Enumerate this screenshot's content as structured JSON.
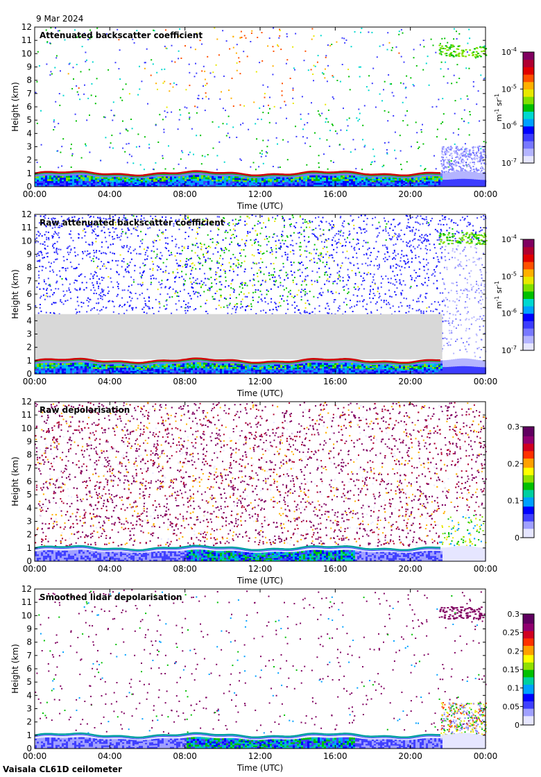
{
  "date_label": "9 Mar 2024",
  "instrument_label": "Vaisala CL61D ceilometer",
  "chart_data": [
    {
      "type": "heatmap",
      "title": "Attenuated backscatter coefficient",
      "xlabel": "Time (UTC)",
      "ylabel": "Height (km)",
      "x_ticks": [
        "00:00",
        "04:00",
        "08:00",
        "12:00",
        "16:00",
        "20:00",
        "00:00"
      ],
      "xlim_hours": [
        0,
        24
      ],
      "ylim": [
        0,
        12
      ],
      "y_ticks": [
        0,
        1,
        2,
        3,
        4,
        5,
        6,
        7,
        8,
        9,
        10,
        11,
        12
      ],
      "colorbar": {
        "scale": "log",
        "unit": "m-1 sr-1",
        "unit_base": "m",
        "unit_exp1": "-1",
        "unit_mid": "sr",
        "unit_exp2": "-1",
        "ticks": [
          {
            "base": "10",
            "exp": "-7"
          },
          {
            "base": "10",
            "exp": "-6"
          },
          {
            "base": "10",
            "exp": "-5"
          },
          {
            "base": "10",
            "exp": "-4"
          }
        ]
      },
      "cloud_base_km": 1.0,
      "high_cloud": {
        "start_hour": 21.5,
        "height_km": [
          9.8,
          10.7
        ]
      },
      "variant": "att"
    },
    {
      "type": "heatmap",
      "title": "Raw attenuated backscatter coefficient",
      "xlabel": "Time (UTC)",
      "ylabel": "Height (km)",
      "x_ticks": [
        "00:00",
        "04:00",
        "08:00",
        "12:00",
        "16:00",
        "20:00",
        "00:00"
      ],
      "xlim_hours": [
        0,
        24
      ],
      "ylim": [
        0,
        12
      ],
      "y_ticks": [
        0,
        1,
        2,
        3,
        4,
        5,
        6,
        7,
        8,
        9,
        10,
        11,
        12
      ],
      "colorbar": {
        "scale": "log",
        "unit": "m-1 sr-1",
        "unit_base": "m",
        "unit_exp1": "-1",
        "unit_mid": "sr",
        "unit_exp2": "-1",
        "ticks": [
          {
            "base": "10",
            "exp": "-7"
          },
          {
            "base": "10",
            "exp": "-6"
          },
          {
            "base": "10",
            "exp": "-5"
          },
          {
            "base": "10",
            "exp": "-4"
          }
        ]
      },
      "cloud_base_km": 1.0,
      "high_cloud": {
        "start_hour": 21.5,
        "height_km": [
          9.8,
          10.7
        ]
      },
      "variant": "raw"
    },
    {
      "type": "heatmap",
      "title": "Raw depolarisation",
      "xlabel": "Time (UTC)",
      "ylabel": "Height (km)",
      "x_ticks": [
        "00:00",
        "04:00",
        "08:00",
        "12:00",
        "16:00",
        "20:00",
        "00:00"
      ],
      "xlim_hours": [
        0,
        24
      ],
      "ylim": [
        0,
        12
      ],
      "y_ticks": [
        0,
        1,
        2,
        3,
        4,
        5,
        6,
        7,
        8,
        9,
        10,
        11,
        12
      ],
      "colorbar": {
        "scale": "linear",
        "range": [
          0,
          0.3
        ],
        "ticks": [
          "0",
          "0.1",
          "0.2",
          "0.3"
        ]
      },
      "cloud_base_km": 1.0,
      "variant": "rawdep"
    },
    {
      "type": "heatmap",
      "title": "Smoothed lidar depolarisation",
      "xlabel": "Time (UTC)",
      "ylabel": "Height (km)",
      "x_ticks": [
        "00:00",
        "04:00",
        "08:00",
        "12:00",
        "16:00",
        "20:00",
        "00:00"
      ],
      "xlim_hours": [
        0,
        24
      ],
      "ylim": [
        0,
        12
      ],
      "y_ticks": [
        0,
        1,
        2,
        3,
        4,
        5,
        6,
        7,
        8,
        9,
        10,
        11,
        12
      ],
      "colorbar": {
        "scale": "linear",
        "range": [
          0,
          0.3
        ],
        "ticks": [
          "0",
          "0.05",
          "0.1",
          "0.15",
          "0.2",
          "0.25",
          "0.3"
        ]
      },
      "cloud_base_km": 1.0,
      "high_cloud": {
        "start_hour": 21.5,
        "height_km": [
          9.8,
          10.7
        ]
      },
      "variant": "smdep"
    }
  ]
}
